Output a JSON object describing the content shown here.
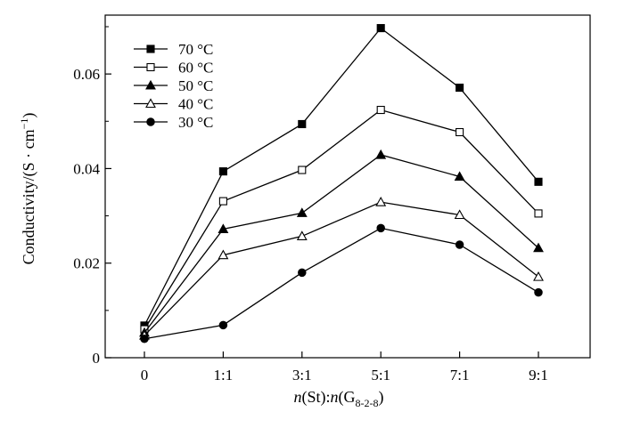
{
  "chart_data": {
    "type": "line",
    "categories": [
      "0",
      "1:1",
      "3:1",
      "5:1",
      "7:1",
      "9:1"
    ],
    "xlabel": "n(St):n(G8-2-8)",
    "xlabel_parts": {
      "n1": "n",
      "st": "(St):",
      "n2": "n",
      "g": "(G",
      "sub": "8-2-8",
      "close": ")"
    },
    "ylabel": "Conductivity/(S · cm⁻¹)",
    "ylabel_parts": {
      "main": "Conductivity/(S · cm",
      "sup": "−1",
      "close": ")"
    },
    "ylim": [
      0,
      0.07
    ],
    "yticks": [
      0,
      0.02,
      0.04,
      0.06
    ],
    "ytick_labels": [
      "0",
      "0.02",
      "0.04",
      "0.06"
    ],
    "grid": false,
    "legend_position": "top-left",
    "series": [
      {
        "name": "70 °C",
        "marker": "square-filled",
        "values": [
          0.0068,
          0.0394,
          0.0494,
          0.0697,
          0.0571,
          0.0372
        ]
      },
      {
        "name": "60 °C",
        "marker": "square-open",
        "values": [
          0.006,
          0.0331,
          0.0397,
          0.0524,
          0.0477,
          0.0305
        ]
      },
      {
        "name": "50 °C",
        "marker": "triangle-filled",
        "values": [
          0.0053,
          0.0272,
          0.0306,
          0.0429,
          0.0383,
          0.0232
        ]
      },
      {
        "name": "40 °C",
        "marker": "triangle-open",
        "values": [
          0.0047,
          0.0217,
          0.0257,
          0.0329,
          0.0302,
          0.0171
        ]
      },
      {
        "name": "30 °C",
        "marker": "circle-filled",
        "values": [
          0.004,
          0.0069,
          0.018,
          0.0274,
          0.0239,
          0.0138
        ]
      }
    ]
  }
}
